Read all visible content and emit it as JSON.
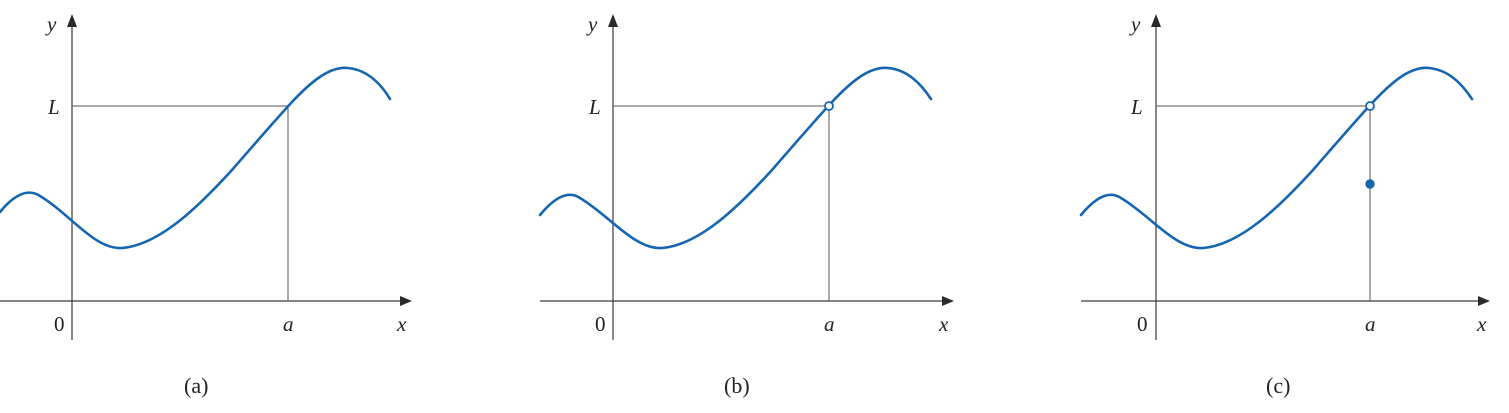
{
  "panels": [
    {
      "caption": "(a)",
      "y_axis_label": "y",
      "x_axis_label": "x",
      "origin_label": "0",
      "x_marker_label": "a",
      "y_marker_label": "L",
      "point_at_a": "on-curve",
      "separate_value_at_a": false
    },
    {
      "caption": "(b)",
      "y_axis_label": "y",
      "x_axis_label": "x",
      "origin_label": "0",
      "x_marker_label": "a",
      "y_marker_label": "L",
      "point_at_a": "open-circle",
      "separate_value_at_a": false
    },
    {
      "caption": "(c)",
      "y_axis_label": "y",
      "x_axis_label": "x",
      "origin_label": "0",
      "x_marker_label": "a",
      "y_marker_label": "L",
      "point_at_a": "open-circle",
      "separate_value_at_a": true
    }
  ],
  "colors": {
    "curve": "#1565b0",
    "axes": "#3a3a3a",
    "guides": "#555555"
  }
}
